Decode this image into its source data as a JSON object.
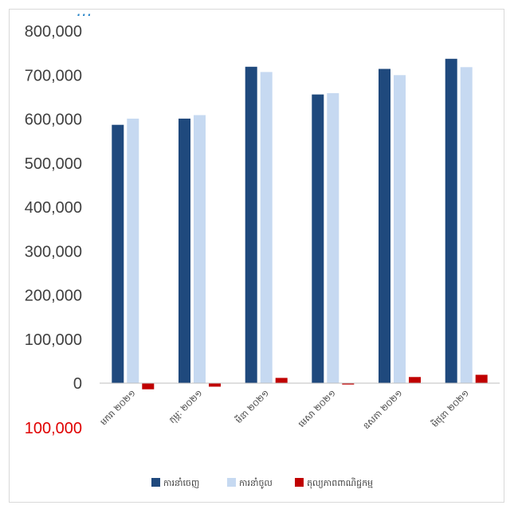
{
  "title_fragment": "…",
  "chart_data": {
    "type": "bar",
    "categories": [
      "មករា ២០២១",
      "កុម្ភៈ ២០២១",
      "មីនា ២០២១",
      "មេសា ២០២១",
      "ឧសភា ២០២១",
      "មិថុនា ២០២១"
    ],
    "series": [
      {
        "name": "ការនាំចេញ",
        "color": "#1f497d",
        "values": [
          587000,
          601000,
          719000,
          656000,
          714000,
          737000
        ]
      },
      {
        "name": "ការនាំចូល",
        "color": "#c6d9f1",
        "values": [
          601000,
          609000,
          707000,
          659000,
          700000,
          718000
        ]
      },
      {
        "name": "តុល្យភាពពាណិជ្ជកម្ម",
        "color": "#c00000",
        "values": [
          -14000,
          -8000,
          12000,
          -3000,
          14000,
          19000
        ]
      }
    ],
    "yticks": [
      {
        "value": 800000,
        "label": "800,000"
      },
      {
        "value": 700000,
        "label": "700,000"
      },
      {
        "value": 600000,
        "label": "600,000"
      },
      {
        "value": 500000,
        "label": "500,000"
      },
      {
        "value": 400000,
        "label": "400,000"
      },
      {
        "value": 300000,
        "label": "300,000"
      },
      {
        "value": 200000,
        "label": "200,000"
      },
      {
        "value": 100000,
        "label": "100,000"
      },
      {
        "value": 0,
        "label": "0"
      },
      {
        "value": -100000,
        "label": "100,000",
        "color": "#e00000"
      }
    ],
    "ylim": [
      -100000,
      800000
    ],
    "grid": false,
    "legend_position": "bottom"
  }
}
